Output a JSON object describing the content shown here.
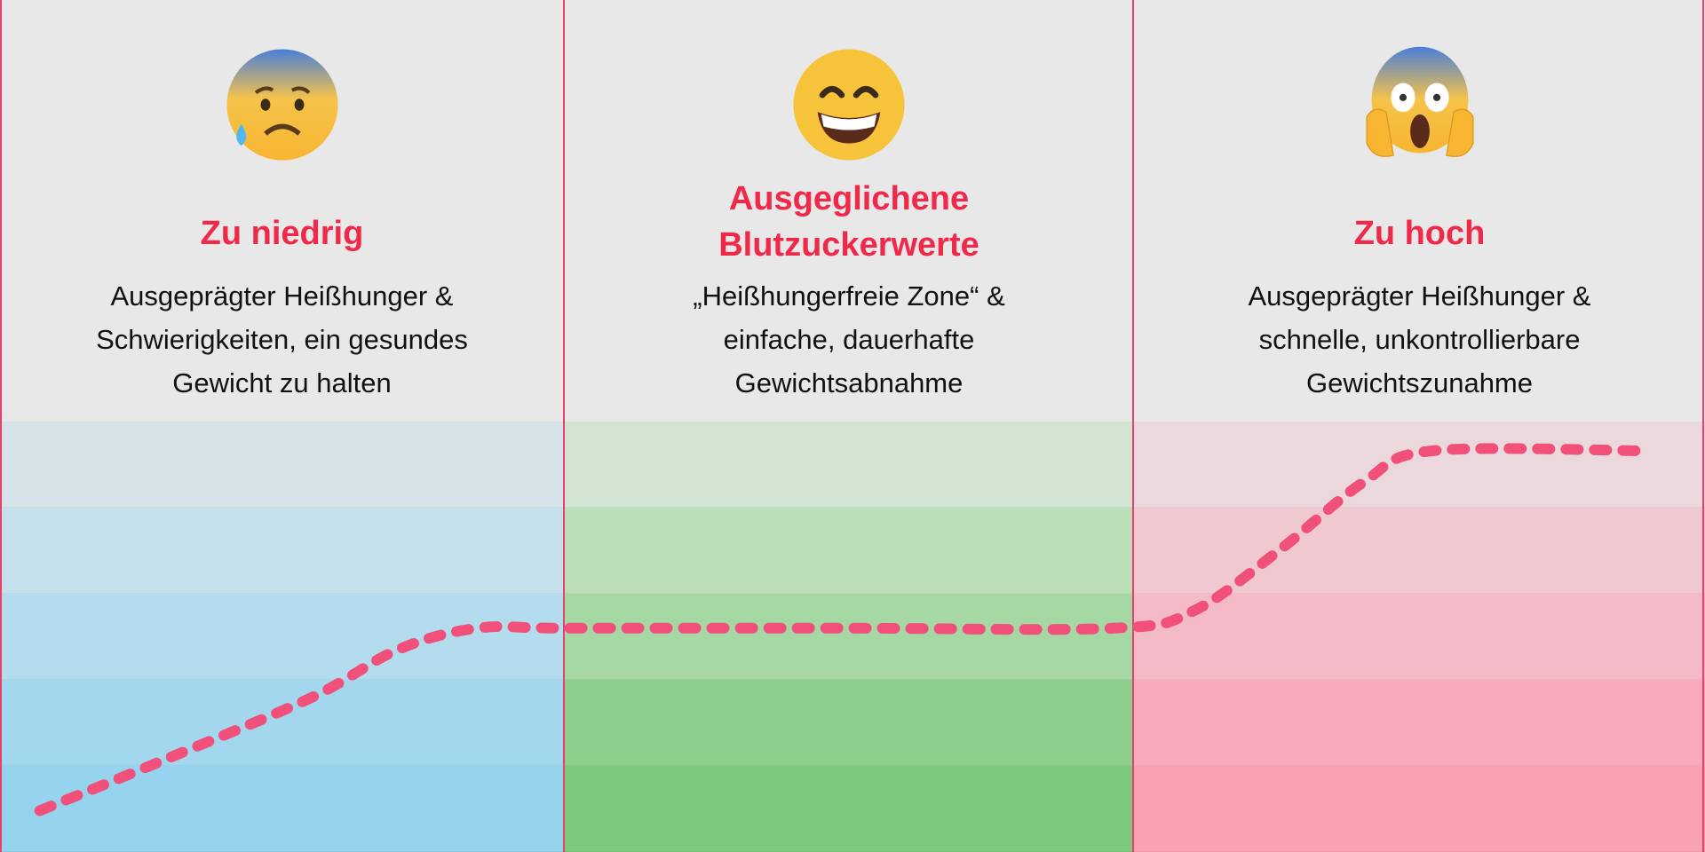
{
  "columns": [
    {
      "title": "Zu niedrig",
      "lines": [
        "Ausgeprägter Heißhunger &",
        "Schwierigkeiten, ein gesundes",
        "Gewicht zu halten"
      ],
      "emoji": "anxious-face-with-sweat-icon",
      "band_colors": [
        "#d6e3e9",
        "#c4e0eb",
        "#b3ddee",
        "#a3d7ee",
        "#95d3ee"
      ]
    },
    {
      "title": "Ausgeglichene Blutzuckerwerte",
      "title_lines": [
        "Ausgeglichene",
        "Blutzuckerwerte"
      ],
      "lines": [
        "„Heißhungerfreie Zone“ &",
        "einfache, dauerhafte",
        "Gewichtsabnahme"
      ],
      "emoji": "grinning-face-icon",
      "band_colors": [
        "#d2e5d2",
        "#bcdfba",
        "#a5d8a3",
        "#8ecf8c",
        "#7dca7c"
      ]
    },
    {
      "title": "Zu hoch",
      "lines": [
        "Ausgeprägter Heißhunger &",
        "schnelle, unkontrollierbare",
        "Gewichtszunahme"
      ],
      "emoji": "screaming-face-icon",
      "band_colors": [
        "#ead8dd",
        "#efc8d0",
        "#f5bac8",
        "#f9abbd",
        "#f8a2b4"
      ]
    }
  ],
  "colors": {
    "title": "#f0284a",
    "divider": "#e8406a",
    "curve": "#f0507a",
    "header_bg": "#e8e8e8"
  },
  "chart_data": {
    "type": "line",
    "style": "dashed",
    "x_range": [
      0,
      3
    ],
    "y_range": [
      0,
      5
    ],
    "grid": true,
    "x": [
      0.07,
      0.3,
      0.55,
      0.7,
      0.84,
      1.0,
      1.5,
      1.96,
      2.1,
      2.25,
      2.4,
      2.52,
      2.9
    ],
    "y": [
      0.48,
      1.1,
      1.8,
      2.35,
      2.6,
      2.6,
      2.6,
      2.6,
      2.8,
      3.5,
      4.3,
      4.66,
      4.66
    ]
  }
}
